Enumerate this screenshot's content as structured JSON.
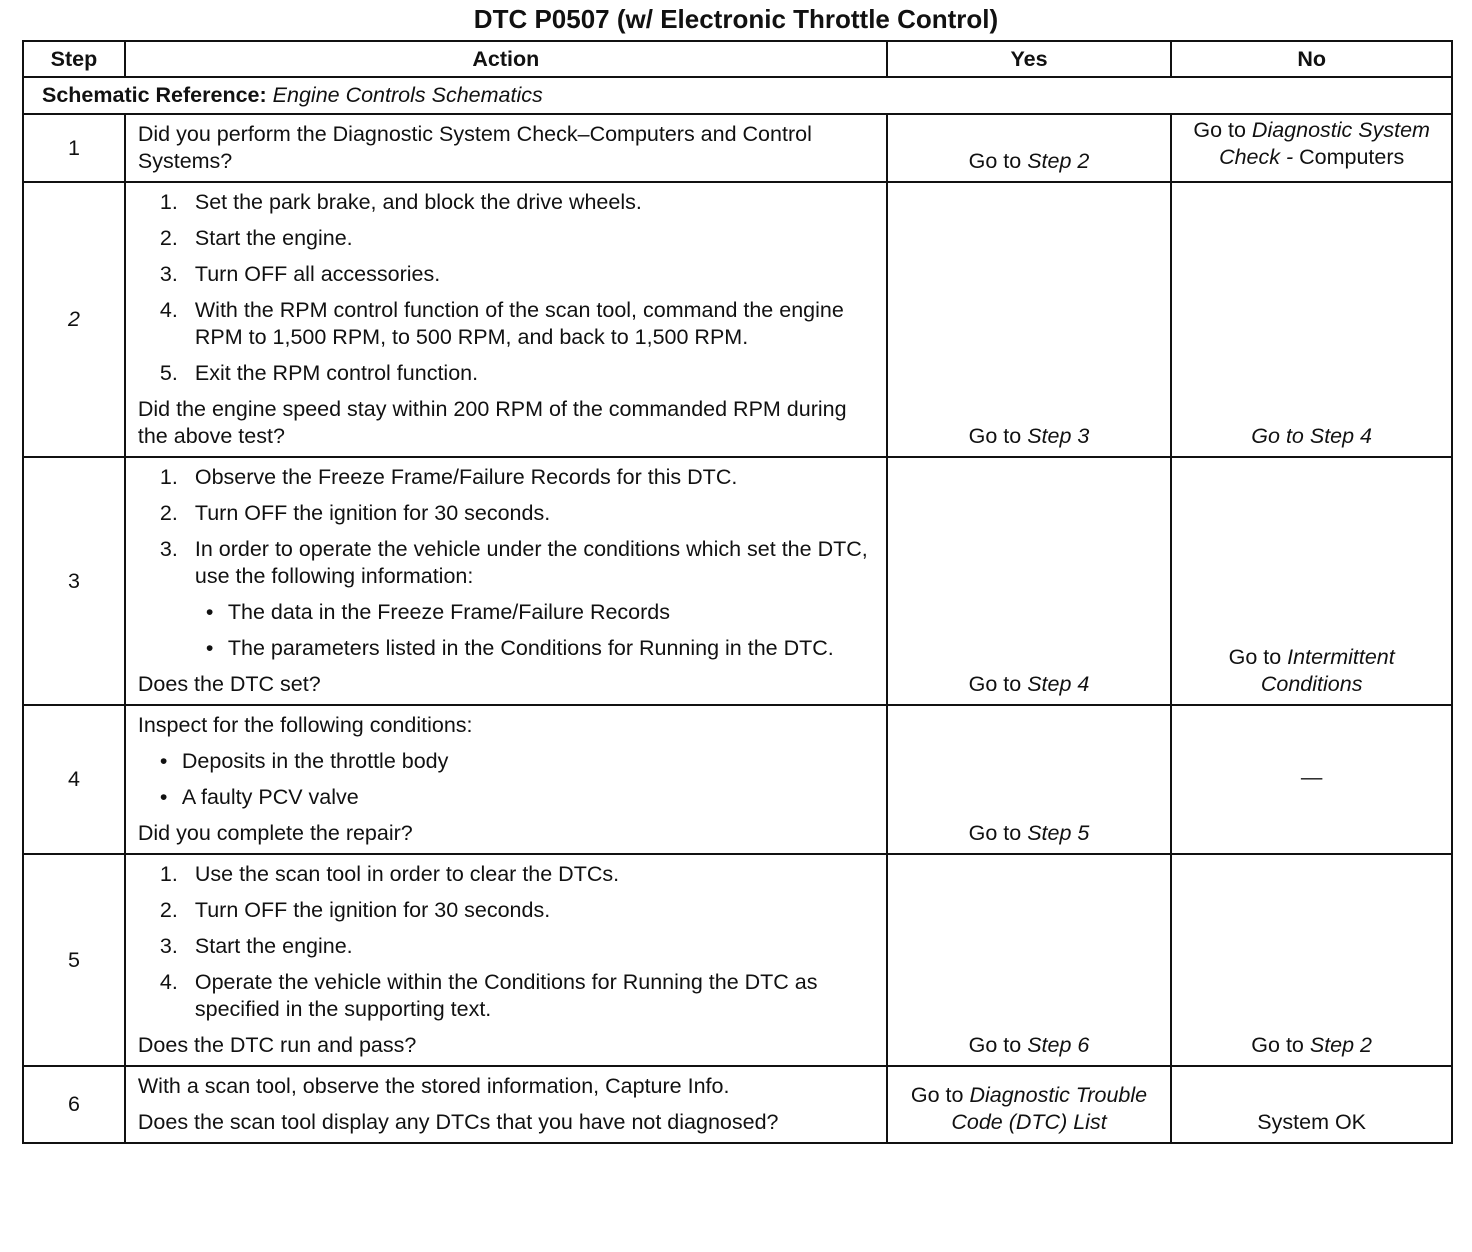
{
  "title": "DTC P0507 (w/ Electronic Throttle Control)",
  "headers": {
    "step": "Step",
    "action": "Action",
    "yes": "Yes",
    "no": "No"
  },
  "schematic": {
    "label": "Schematic Reference:",
    "value": "Engine Controls Schematics"
  },
  "rows": [
    {
      "step": "1",
      "action": [
        {
          "t": "p",
          "text": "Did you perform the Diagnostic System Check–Computers  and Control  Systems?"
        }
      ],
      "yes": [
        {
          "text": "Go to "
        },
        {
          "text": "Step 2",
          "italic": true
        }
      ],
      "no": [
        {
          "text": "Go to "
        },
        {
          "text": "Diagnostic System Check -",
          "italic": true
        },
        {
          "text": " Computers"
        }
      ],
      "no_align": "top"
    },
    {
      "step": "2",
      "action": [
        {
          "t": "num",
          "n": "1.",
          "text": "Set the park brake, and block the drive wheels."
        },
        {
          "t": "num",
          "n": "2.",
          "text": "Start the engine."
        },
        {
          "t": "num",
          "n": "3.",
          "text": "Turn OFF all accessories."
        },
        {
          "t": "num",
          "n": "4.",
          "text": "With the RPM control function of the scan tool, command the engine RPM to 1,500 RPM, to 500 RPM, and back to 1,500 RPM."
        },
        {
          "t": "num",
          "n": "5.",
          "text": "Exit the RPM control function."
        },
        {
          "t": "p",
          "text": "Did the engine speed stay within 200 RPM of the commanded RPM during the above test?"
        }
      ],
      "yes": [
        {
          "text": "Go to "
        },
        {
          "text": "Step 3",
          "italic": true
        }
      ],
      "no": [
        {
          "text": "Go to Step 4",
          "italic": true
        }
      ]
    },
    {
      "step": "3",
      "action": [
        {
          "t": "num",
          "n": "1.",
          "text": "Observe the Freeze Frame/Failure Records for this DTC."
        },
        {
          "t": "num",
          "n": "2.",
          "text": "Turn OFF the ignition for 30 seconds."
        },
        {
          "t": "num",
          "n": "3.",
          "text": "In order to operate the vehicle under the conditions which set the DTC, use the following information:"
        },
        {
          "t": "bul",
          "text": "The data in the Freeze Frame/Failure Records"
        },
        {
          "t": "bul",
          "text": "The parameters listed in the Conditions for Running in the DTC."
        },
        {
          "t": "p",
          "text": "Does the DTC set?"
        }
      ],
      "yes": [
        {
          "text": "Go to "
        },
        {
          "text": "Step 4",
          "italic": true
        }
      ],
      "no": [
        {
          "text": "Go to "
        },
        {
          "text": "Intermittent Conditions",
          "italic": true
        }
      ]
    },
    {
      "step": "4",
      "action": [
        {
          "t": "p",
          "text": "Inspect for the following conditions:"
        },
        {
          "t": "bul1",
          "text": "Deposits in the throttle body"
        },
        {
          "t": "bul1",
          "text": "A faulty PCV valve"
        },
        {
          "t": "p",
          "text": "Did you complete the repair?"
        }
      ],
      "yes": [
        {
          "text": "Go to "
        },
        {
          "text": "Step 5",
          "italic": true
        }
      ],
      "no": [
        {
          "text": "—"
        }
      ],
      "no_align": "mid"
    },
    {
      "step": "5",
      "action": [
        {
          "t": "num",
          "n": "1.",
          "text": "Use the scan tool in order to clear the DTCs."
        },
        {
          "t": "num",
          "n": "2.",
          "text": "Turn OFF the ignition for 30 seconds."
        },
        {
          "t": "num",
          "n": "3.",
          "text": "Start the engine."
        },
        {
          "t": "num",
          "n": "4.",
          "text": "Operate the vehicle within the Conditions for Running the DTC as specified in the supporting text."
        },
        {
          "t": "p",
          "text": "Does the DTC run and pass?"
        }
      ],
      "yes": [
        {
          "text": "Go to "
        },
        {
          "text": "Step 6",
          "italic": true
        }
      ],
      "no": [
        {
          "text": "Go to "
        },
        {
          "text": "Step 2",
          "italic": true
        }
      ]
    },
    {
      "step": "6",
      "action": [
        {
          "t": "p",
          "text": "With a scan tool, observe the stored information, Capture Info."
        },
        {
          "t": "p",
          "text": "Does the scan tool display any DTCs that you have not diagnosed?"
        }
      ],
      "yes": [
        {
          "text": "Go to "
        },
        {
          "text": "Diagnostic Trouble Code (DTC) List",
          "italic": true
        }
      ],
      "no": [
        {
          "text": "System OK"
        }
      ]
    }
  ]
}
